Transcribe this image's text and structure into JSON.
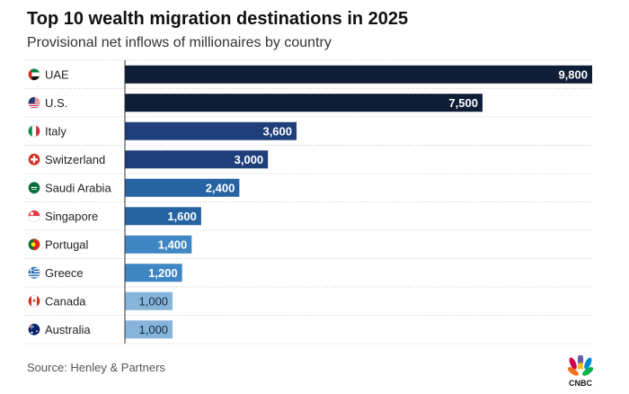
{
  "title": "Top 10 wealth migration destinations in 2025",
  "subtitle": "Provisional net inflows of millionaires by country",
  "source": "Source: Henley & Partners",
  "logo": {
    "text": "CNBC",
    "icon": "peacock-icon"
  },
  "chart_data": {
    "type": "bar",
    "orientation": "horizontal",
    "title": "Top 10 wealth migration destinations in 2025",
    "subtitle": "Provisional net inflows of millionaires by country",
    "xlabel": "",
    "ylabel": "",
    "xlim": [
      0,
      9800
    ],
    "categories": [
      "UAE",
      "U.S.",
      "Italy",
      "Switzerland",
      "Saudi Arabia",
      "Singapore",
      "Portugal",
      "Greece",
      "Canada",
      "Australia"
    ],
    "values": [
      9800,
      7500,
      3600,
      3000,
      2400,
      1600,
      1400,
      1200,
      1000,
      1000
    ],
    "value_labels": [
      "9,800",
      "7,500",
      "3,600",
      "3,000",
      "2,400",
      "1,600",
      "1,400",
      "1,200",
      "1,000",
      "1,000"
    ],
    "flags": [
      "uae-flag-icon",
      "us-flag-icon",
      "italy-flag-icon",
      "switzerland-flag-icon",
      "saudi-arabia-flag-icon",
      "singapore-flag-icon",
      "portugal-flag-icon",
      "greece-flag-icon",
      "canada-flag-icon",
      "australia-flag-icon"
    ],
    "bar_colors": [
      "#0f1d36",
      "#0f1d36",
      "#1f3f7a",
      "#1f3f7a",
      "#2663a3",
      "#2663a3",
      "#3f86c4",
      "#3f86c4",
      "#86b4da",
      "#86b4da"
    ],
    "label_colors": [
      "#ffffff",
      "#ffffff",
      "#ffffff",
      "#ffffff",
      "#ffffff",
      "#ffffff",
      "#ffffff",
      "#ffffff",
      "#1b2a3f",
      "#1b2a3f"
    ],
    "gridlines": true
  }
}
